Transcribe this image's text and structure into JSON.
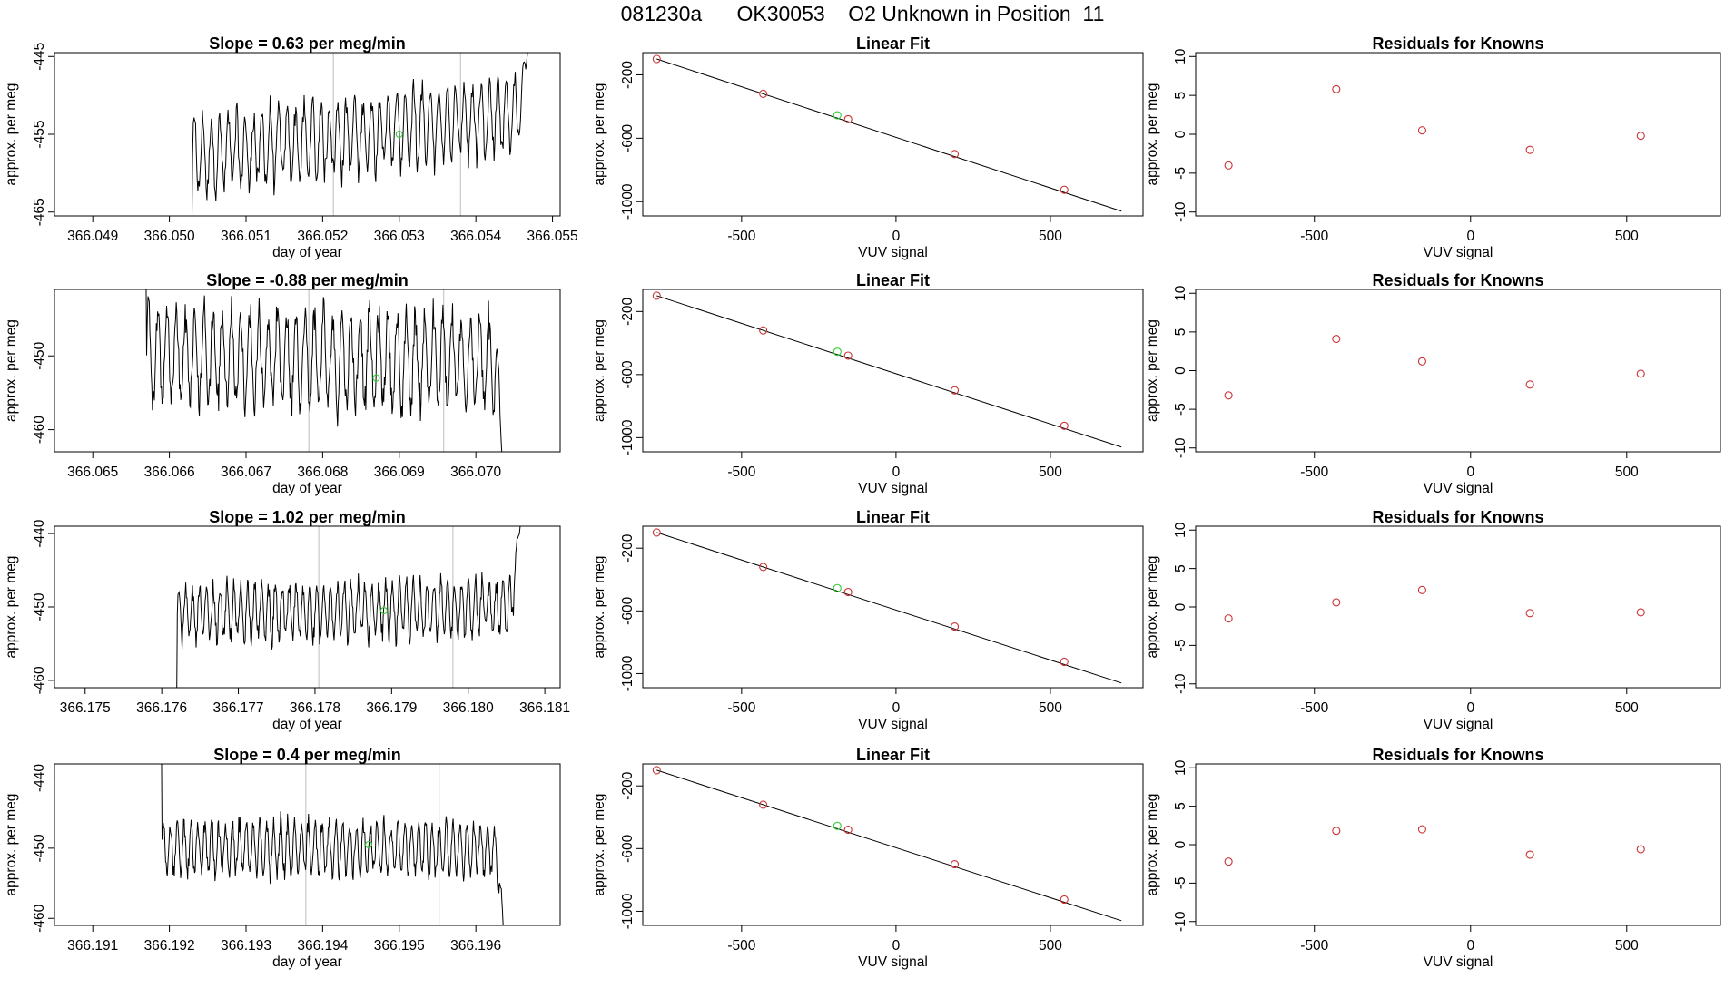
{
  "page": {
    "title": "081230a      OK30053    O2 Unknown in Position  11"
  },
  "colors": {
    "axis": "#000000",
    "trace": "#000000",
    "known": "#cc3333",
    "unknown": "#33cc33",
    "divider": "#c8c8c8"
  },
  "chart_data": [
    {
      "type": "line",
      "name": "time-trace-1",
      "row": 0,
      "col": 0,
      "title": "Slope =  0.63  per meg/min",
      "xlabel": "day of year",
      "ylabel": "approx. per meg",
      "xlim": [
        366.0485,
        366.0551
      ],
      "ylim": [
        -465.5,
        -444.5
      ],
      "xticks": [
        366.049,
        366.05,
        366.051,
        366.052,
        366.053,
        366.054,
        366.055
      ],
      "xtick_labels": [
        "366.049",
        "366.050",
        "366.051",
        "366.052",
        "366.053",
        "366.054",
        "366.055"
      ],
      "yticks": [
        -445,
        -455,
        -465
      ],
      "ytick_labels": [
        "-445",
        "-455",
        "-465"
      ],
      "dividers": [
        366.05214,
        366.0538
      ],
      "unknown_point": [
        366.053,
        -455
      ],
      "trace": {
        "start": 366.0486,
        "end": 366.0547,
        "rise_start": 366.0503,
        "base": -468,
        "mean_start": -458,
        "mean_end": -452,
        "amp": 4.5,
        "period": 0.00011,
        "spike_end": -442
      }
    },
    {
      "type": "scatter",
      "name": "linear-fit-1",
      "row": 0,
      "col": 1,
      "title": "Linear Fit",
      "xlabel": "VUV signal",
      "ylabel": "approx. per meg",
      "xlim": [
        -820,
        800
      ],
      "ylim": [
        -1090,
        -60
      ],
      "xticks": [
        -500,
        0,
        500
      ],
      "xtick_labels": [
        "-500",
        "0",
        "500"
      ],
      "yticks": [
        -200,
        -600,
        -1000
      ],
      "ytick_labels": [
        "-200",
        "-600",
        "-1000"
      ],
      "fit_line": [
        [
          -775,
          -100
        ],
        [
          730,
          -1060
        ]
      ],
      "knowns": [
        [
          -775,
          -100
        ],
        [
          -430,
          -320
        ],
        [
          -155,
          -480
        ],
        [
          190,
          -700
        ],
        [
          545,
          -925
        ]
      ],
      "unknown": [
        -190,
        -455
      ]
    },
    {
      "type": "scatter",
      "name": "residuals-1",
      "row": 0,
      "col": 2,
      "title": "Residuals for Knowns",
      "xlabel": "VUV signal",
      "ylabel": "approx. per meg",
      "xlim": [
        -880,
        800
      ],
      "ylim": [
        -10.5,
        10.5
      ],
      "xticks": [
        -500,
        0,
        500
      ],
      "xtick_labels": [
        "-500",
        "0",
        "500"
      ],
      "yticks": [
        10,
        5,
        0,
        -5,
        -10
      ],
      "ytick_labels": [
        "10",
        "5",
        "0",
        "-5",
        "-10"
      ],
      "points": [
        [
          -775,
          -4
        ],
        [
          -430,
          5.8
        ],
        [
          -155,
          0.5
        ],
        [
          190,
          -2
        ],
        [
          545,
          -0.2
        ]
      ]
    },
    {
      "type": "line",
      "name": "time-trace-2",
      "row": 1,
      "col": 0,
      "title": "Slope =  -0.88  per meg/min",
      "xlabel": "day of year",
      "ylabel": "approx. per meg",
      "xlim": [
        366.0645,
        366.0711
      ],
      "ylim": [
        -463,
        -441
      ],
      "xticks": [
        366.065,
        366.066,
        366.067,
        366.068,
        366.069,
        366.07
      ],
      "xtick_labels": [
        "366.065",
        "366.066",
        "366.067",
        "366.068",
        "366.069",
        "366.070"
      ],
      "yticks": [
        -450,
        -460
      ],
      "ytick_labels": [
        "-450",
        "-460"
      ],
      "dividers": [
        366.06782,
        366.06958
      ],
      "unknown_point": [
        366.0687,
        -453
      ],
      "trace": {
        "start": 366.0652,
        "end": 366.0704,
        "rise_start": 366.0657,
        "base": -438,
        "mean_start": -450,
        "mean_end": -451,
        "amp": 6,
        "period": 0.00012,
        "spike_end": -468
      }
    },
    {
      "type": "scatter",
      "name": "linear-fit-2",
      "row": 1,
      "col": 1,
      "title": "Linear Fit",
      "xlabel": "VUV signal",
      "ylabel": "approx. per meg",
      "xlim": [
        -820,
        800
      ],
      "ylim": [
        -1090,
        -60
      ],
      "xticks": [
        -500,
        0,
        500
      ],
      "xtick_labels": [
        "-500",
        "0",
        "500"
      ],
      "yticks": [
        -200,
        -600,
        -1000
      ],
      "ytick_labels": [
        "-200",
        "-600",
        "-1000"
      ],
      "fit_line": [
        [
          -775,
          -100
        ],
        [
          730,
          -1060
        ]
      ],
      "knowns": [
        [
          -775,
          -100
        ],
        [
          -430,
          -320
        ],
        [
          -155,
          -480
        ],
        [
          190,
          -700
        ],
        [
          545,
          -925
        ]
      ],
      "unknown": [
        -190,
        -455
      ]
    },
    {
      "type": "scatter",
      "name": "residuals-2",
      "row": 1,
      "col": 2,
      "title": "Residuals for Knowns",
      "xlabel": "VUV signal",
      "ylabel": "approx. per meg",
      "xlim": [
        -880,
        800
      ],
      "ylim": [
        -10.5,
        10.5
      ],
      "xticks": [
        -500,
        0,
        500
      ],
      "xtick_labels": [
        "-500",
        "0",
        "500"
      ],
      "yticks": [
        10,
        5,
        0,
        -5,
        -10
      ],
      "ytick_labels": [
        "10",
        "5",
        "0",
        "-5",
        "-10"
      ],
      "points": [
        [
          -775,
          -3.2
        ],
        [
          -430,
          4.1
        ],
        [
          -155,
          1.2
        ],
        [
          190,
          -1.8
        ],
        [
          545,
          -0.4
        ]
      ]
    },
    {
      "type": "line",
      "name": "time-trace-3",
      "row": 2,
      "col": 0,
      "title": "Slope =  1.02  per meg/min",
      "xlabel": "day of year",
      "ylabel": "approx. per meg",
      "xlim": [
        366.1746,
        366.1812
      ],
      "ylim": [
        -461,
        -439
      ],
      "xticks": [
        366.175,
        366.176,
        366.177,
        366.178,
        366.179,
        366.18,
        366.181
      ],
      "xtick_labels": [
        "366.175",
        "366.176",
        "366.177",
        "366.178",
        "366.179",
        "366.180",
        "366.181"
      ],
      "yticks": [
        -440,
        -450,
        -460
      ],
      "ytick_labels": [
        "-440",
        "-450",
        "-460"
      ],
      "dividers": [
        366.17805,
        366.1798
      ],
      "unknown_point": [
        366.1789,
        -450.5
      ],
      "trace": {
        "start": 366.1758,
        "end": 366.1807,
        "rise_start": 366.1762,
        "base": -463,
        "mean_start": -451,
        "mean_end": -450,
        "amp": 3.5,
        "period": 9e-05,
        "spike_end": -436
      }
    },
    {
      "type": "scatter",
      "name": "linear-fit-3",
      "row": 2,
      "col": 1,
      "title": "Linear Fit",
      "xlabel": "VUV signal",
      "ylabel": "approx. per meg",
      "xlim": [
        -820,
        800
      ],
      "ylim": [
        -1090,
        -60
      ],
      "xticks": [
        -500,
        0,
        500
      ],
      "xtick_labels": [
        "-500",
        "0",
        "500"
      ],
      "yticks": [
        -200,
        -600,
        -1000
      ],
      "ytick_labels": [
        "-200",
        "-600",
        "-1000"
      ],
      "fit_line": [
        [
          -775,
          -100
        ],
        [
          730,
          -1060
        ]
      ],
      "knowns": [
        [
          -775,
          -100
        ],
        [
          -430,
          -320
        ],
        [
          -155,
          -480
        ],
        [
          190,
          -700
        ],
        [
          545,
          -925
        ]
      ],
      "unknown": [
        -190,
        -455
      ]
    },
    {
      "type": "scatter",
      "name": "residuals-3",
      "row": 2,
      "col": 2,
      "title": "Residuals for Knowns",
      "xlabel": "VUV signal",
      "ylabel": "approx. per meg",
      "xlim": [
        -880,
        800
      ],
      "ylim": [
        -10.5,
        10.5
      ],
      "xticks": [
        -500,
        0,
        500
      ],
      "xtick_labels": [
        "-500",
        "0",
        "500"
      ],
      "yticks": [
        10,
        5,
        0,
        -5,
        -10
      ],
      "ytick_labels": [
        "10",
        "5",
        "0",
        "-5",
        "-10"
      ],
      "points": [
        [
          -775,
          -1.5
        ],
        [
          -430,
          0.6
        ],
        [
          -155,
          2.2
        ],
        [
          190,
          -0.8
        ],
        [
          545,
          -0.7
        ]
      ]
    },
    {
      "type": "line",
      "name": "time-trace-4",
      "row": 3,
      "col": 0,
      "title": "Slope =  0.4  per meg/min",
      "xlabel": "day of year",
      "ylabel": "approx. per meg",
      "xlim": [
        366.1905,
        366.1971
      ],
      "ylim": [
        -461,
        -438
      ],
      "xticks": [
        366.191,
        366.192,
        366.193,
        366.194,
        366.195,
        366.196
      ],
      "xtick_labels": [
        "366.191",
        "366.192",
        "366.193",
        "366.194",
        "366.195",
        "366.196"
      ],
      "yticks": [
        -440,
        -450,
        -460
      ],
      "ytick_labels": [
        "-440",
        "-450",
        "-460"
      ],
      "dividers": [
        366.19378,
        366.19552
      ],
      "unknown_point": [
        366.1946,
        -449.5
      ],
      "trace": {
        "start": 366.1917,
        "end": 366.1964,
        "rise_start": 366.1919,
        "base": -437,
        "mean_start": -450,
        "mean_end": -450,
        "amp": 3.5,
        "period": 9e-05,
        "spike_end": -466
      }
    },
    {
      "type": "scatter",
      "name": "linear-fit-4",
      "row": 3,
      "col": 1,
      "title": "Linear Fit",
      "xlabel": "VUV signal",
      "ylabel": "approx. per meg",
      "xlim": [
        -820,
        800
      ],
      "ylim": [
        -1090,
        -60
      ],
      "xticks": [
        -500,
        0,
        500
      ],
      "xtick_labels": [
        "-500",
        "0",
        "500"
      ],
      "yticks": [
        -200,
        -600,
        -1000
      ],
      "ytick_labels": [
        "-200",
        "-600",
        "-1000"
      ],
      "fit_line": [
        [
          -775,
          -100
        ],
        [
          730,
          -1060
        ]
      ],
      "knowns": [
        [
          -775,
          -100
        ],
        [
          -430,
          -320
        ],
        [
          -155,
          -480
        ],
        [
          190,
          -700
        ],
        [
          545,
          -925
        ]
      ],
      "unknown": [
        -190,
        -455
      ]
    },
    {
      "type": "scatter",
      "name": "residuals-4",
      "row": 3,
      "col": 2,
      "title": "Residuals for Knowns",
      "xlabel": "VUV signal",
      "ylabel": "approx. per meg",
      "xlim": [
        -880,
        800
      ],
      "ylim": [
        -10.5,
        10.5
      ],
      "xticks": [
        -500,
        0,
        500
      ],
      "xtick_labels": [
        "-500",
        "0",
        "500"
      ],
      "yticks": [
        10,
        5,
        0,
        -5,
        -10
      ],
      "ytick_labels": [
        "10",
        "5",
        "0",
        "-5",
        "-10"
      ],
      "points": [
        [
          -775,
          -2.2
        ],
        [
          -430,
          1.8
        ],
        [
          -155,
          2.0
        ],
        [
          190,
          -1.3
        ],
        [
          545,
          -0.6
        ]
      ]
    }
  ]
}
